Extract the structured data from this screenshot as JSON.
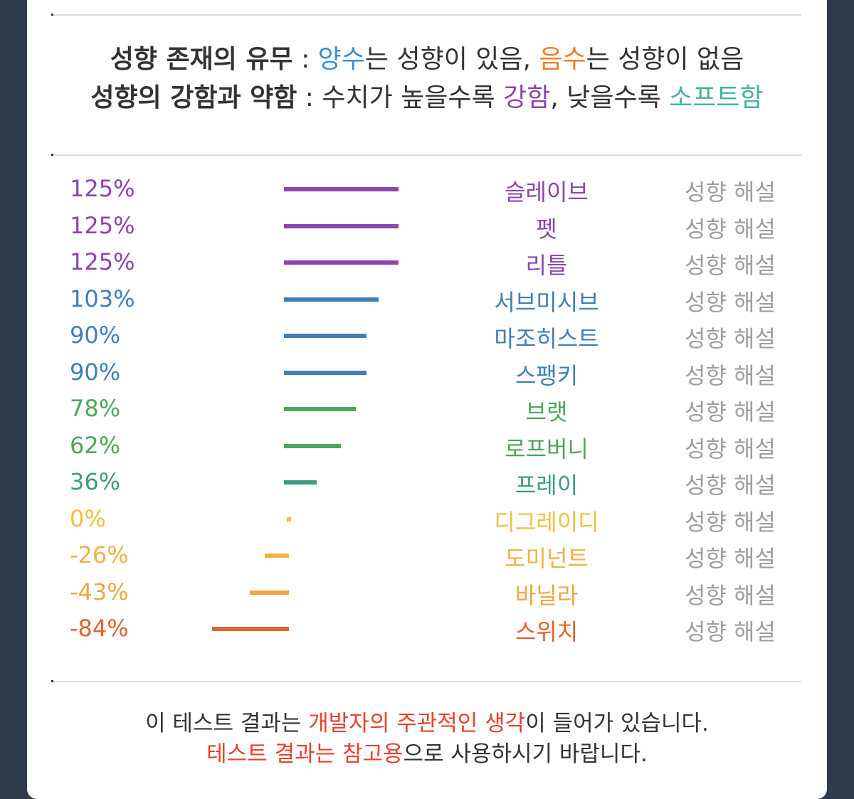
{
  "header": {
    "line1": {
      "title": "성향 존재의 유무",
      "sep": " : ",
      "part1": "양수",
      "part2": "는 성향이 있음, ",
      "part3": "음수",
      "part4": "는 성향이 없음"
    },
    "line2": {
      "title": "성향의 강함과 약함",
      "sep": " : ",
      "part1": "수치가 높을수록 ",
      "part2": "강함",
      "part3": ", 낮을수록 ",
      "part4": "소프트함"
    }
  },
  "colors": {
    "positive": "#3b8fd6",
    "negative": "#f07f2a",
    "strong": "#8e44ad",
    "soft": "#45b39d",
    "purple": "#8e44ad",
    "blue": "#3f7fb8",
    "green": "#4ea65a",
    "teal": "#3f9a82",
    "yellow": "#f0c040",
    "amber": "#f2b142",
    "orangeLight": "#f0a640",
    "orangeDark": "#e0642e",
    "link": "#9e9e9e",
    "emphasis": "#e8412c"
  },
  "chart_data": {
    "type": "bar",
    "orientation": "horizontal",
    "categories": [
      "슬레이브",
      "펫",
      "리틀",
      "서브미시브",
      "마조히스트",
      "스팽키",
      "브랫",
      "로프버니",
      "프레이",
      "디그레이디",
      "도미넌트",
      "바닐라",
      "스위치"
    ],
    "values": [
      125,
      125,
      125,
      103,
      90,
      90,
      78,
      62,
      36,
      0,
      -26,
      -43,
      -84
    ],
    "value_labels": [
      "125%",
      "125%",
      "125%",
      "103%",
      "90%",
      "90%",
      "78%",
      "62%",
      "36%",
      "0%",
      "-26%",
      "-43%",
      "-84%"
    ],
    "series_colors": [
      "#8e44ad",
      "#8e44ad",
      "#8e44ad",
      "#3f7fb8",
      "#3f7fb8",
      "#3f7fb8",
      "#4ea65a",
      "#4ea65a",
      "#3f9a82",
      "#f0c040",
      "#f2b142",
      "#f0a640",
      "#e0642e"
    ],
    "link_label": "성향 해설",
    "unit": "%"
  },
  "footer": {
    "line1": {
      "part1": "이 테스트 결과는 ",
      "part2": "개발자의 주관적인 생각",
      "part3": "이 들어가 있습니다."
    },
    "line2": {
      "part1": "테스트 결과는 참고용",
      "part2": "으로 사용하시기 바랍니다."
    }
  }
}
